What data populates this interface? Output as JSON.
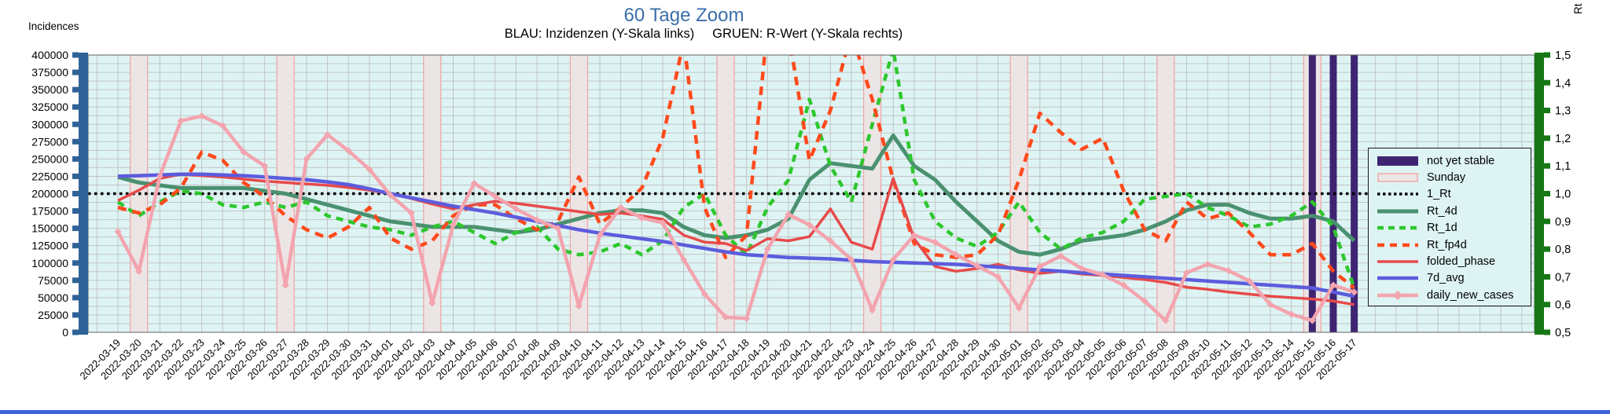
{
  "header": {
    "title": "60 Tage Zoom",
    "subtitle": "BLAU: Inzidenzen (Y-Skala links)     GRUEN: R-Wert (Y-Skala rechts)",
    "y_left_title": "Incidences",
    "y_right_title": "Rt"
  },
  "colors": {
    "plot_bg": "#def4f4",
    "grid": "#c3c3c3",
    "sunday_fill": "#ece5e5",
    "sunday_edge": "#f2a6a6",
    "not_yet_stable": "#3f2472",
    "left_axis_bar": "#2f6397",
    "right_axis_bar": "#157815",
    "reference_line": "#000000",
    "title_color": "#3a6ea8",
    "bottom_strip": "#3c64d8"
  },
  "chart_data": {
    "type": "line",
    "title": "60 Tage Zoom",
    "subtitle": "BLAU: Inzidenzen (Y-Skala links)    GRUEN: R-Wert (Y-Skala rechts)",
    "x_dates": [
      "2022-03-19",
      "2022-03-20",
      "2022-03-21",
      "2022-03-22",
      "2022-03-23",
      "2022-03-24",
      "2022-03-25",
      "2022-03-26",
      "2022-03-27",
      "2022-03-28",
      "2022-03-29",
      "2022-03-30",
      "2022-03-31",
      "2022-04-01",
      "2022-04-02",
      "2022-04-03",
      "2022-04-04",
      "2022-04-05",
      "2022-04-06",
      "2022-04-07",
      "2022-04-08",
      "2022-04-09",
      "2022-04-10",
      "2022-04-11",
      "2022-04-12",
      "2022-04-13",
      "2022-04-14",
      "2022-04-15",
      "2022-04-16",
      "2022-04-17",
      "2022-04-18",
      "2022-04-19",
      "2022-04-20",
      "2022-04-21",
      "2022-04-22",
      "2022-04-23",
      "2022-04-24",
      "2022-04-25",
      "2022-04-26",
      "2022-04-27",
      "2022-04-28",
      "2022-04-29",
      "2022-04-30",
      "2022-05-01",
      "2022-05-02",
      "2022-05-03",
      "2022-05-04",
      "2022-05-05",
      "2022-05-06",
      "2022-05-07",
      "2022-05-08",
      "2022-05-09",
      "2022-05-10",
      "2022-05-11",
      "2022-05-12",
      "2022-05-13",
      "2022-05-14",
      "2022-05-15",
      "2022-05-16",
      "2022-05-17"
    ],
    "y_left": {
      "label": "Incidences",
      "min": 0,
      "max": 400000,
      "tick_step": 25000,
      "grid_step": 12500,
      "tick_labels": [
        "0",
        "25000",
        "50000",
        "75000",
        "100000",
        "125000",
        "150000",
        "175000",
        "200000",
        "225000",
        "250000",
        "275000",
        "300000",
        "325000",
        "350000",
        "375000",
        "400000"
      ]
    },
    "y_right": {
      "label": "Rt",
      "min": 0.5,
      "max": 1.5,
      "tick_step": 0.1,
      "tick_labels": [
        "0,5",
        "0,6",
        "0,7",
        "0,8",
        "0,9",
        "1,0",
        "1,1",
        "1,2",
        "1,3",
        "1,4",
        "1,5"
      ]
    },
    "sunday_band_indices": [
      1,
      8,
      15,
      22,
      29,
      36,
      43,
      50,
      57
    ],
    "not_yet_stable_indices": [
      57,
      58,
      59
    ],
    "reference_line": {
      "label": "1_Rt",
      "axis": "right",
      "value": 1.0
    },
    "series": [
      {
        "key": "Rt_4d",
        "label": "Rt_4d",
        "axis": "right",
        "color": "#4a9170",
        "width": 5,
        "dash": null,
        "values": [
          1.06,
          1.04,
          1.03,
          1.02,
          1.02,
          1.02,
          1.02,
          1.01,
          1.0,
          0.98,
          0.96,
          0.94,
          0.92,
          0.9,
          0.89,
          0.88,
          0.88,
          0.88,
          0.87,
          0.86,
          0.87,
          0.89,
          0.91,
          0.93,
          0.94,
          0.94,
          0.93,
          0.88,
          0.85,
          0.84,
          0.85,
          0.87,
          0.91,
          1.05,
          1.11,
          1.1,
          1.09,
          1.21,
          1.1,
          1.05,
          0.97,
          0.9,
          0.83,
          0.79,
          0.78,
          0.8,
          0.83,
          0.84,
          0.85,
          0.87,
          0.9,
          0.94,
          0.96,
          0.96,
          0.93,
          0.91,
          0.91,
          0.92,
          0.9,
          0.83
        ]
      },
      {
        "key": "Rt_1d",
        "label": "Rt_1d",
        "axis": "right",
        "color": "#2dc72d",
        "width": 4.5,
        "dash": "9 7",
        "values": [
          0.97,
          0.92,
          0.97,
          1.01,
          1.0,
          0.96,
          0.95,
          0.97,
          0.95,
          0.97,
          0.92,
          0.9,
          0.88,
          0.87,
          0.85,
          0.88,
          0.9,
          0.86,
          0.82,
          0.86,
          0.88,
          0.8,
          0.78,
          0.79,
          0.82,
          0.78,
          0.83,
          0.95,
          1.0,
          0.85,
          0.78,
          0.95,
          1.05,
          1.34,
          1.1,
          0.97,
          1.25,
          1.52,
          1.05,
          0.9,
          0.84,
          0.81,
          0.86,
          0.97,
          0.86,
          0.8,
          0.84,
          0.86,
          0.9,
          0.98,
          0.99,
          1.0,
          0.95,
          0.92,
          0.88,
          0.89,
          0.92,
          0.97,
          0.88,
          0.66
        ]
      },
      {
        "key": "Rt_fp4d",
        "label": "Rt_fp4d",
        "axis": "right",
        "color": "#ff4a1c",
        "width": 4.5,
        "dash": "11 8",
        "values": [
          0.95,
          0.93,
          0.96,
          1.02,
          1.15,
          1.12,
          1.04,
          0.99,
          0.92,
          0.87,
          0.84,
          0.88,
          0.95,
          0.84,
          0.8,
          0.83,
          0.92,
          0.96,
          0.96,
          0.91,
          0.87,
          0.9,
          1.06,
          0.89,
          0.95,
          1.02,
          1.2,
          1.55,
          0.95,
          0.77,
          0.85,
          1.6,
          1.58,
          1.12,
          1.3,
          1.58,
          1.34,
          1.05,
          0.82,
          0.78,
          0.77,
          0.78,
          0.85,
          1.05,
          1.29,
          1.22,
          1.16,
          1.2,
          1.01,
          0.87,
          0.83,
          0.97,
          0.91,
          0.93,
          0.86,
          0.78,
          0.78,
          0.82,
          0.72,
          0.66
        ]
      },
      {
        "key": "folded_phase",
        "label": "folded_phase",
        "axis": "left",
        "color": "#e74a4a",
        "width": 3.5,
        "dash": null,
        "values": [
          190000,
          205000,
          222000,
          228000,
          226000,
          224000,
          221000,
          218000,
          216000,
          214000,
          212000,
          209000,
          205000,
          200000,
          193000,
          185000,
          178000,
          184000,
          189000,
          186000,
          182000,
          178000,
          174000,
          170000,
          172000,
          168000,
          163000,
          140000,
          130000,
          128000,
          118000,
          135000,
          132000,
          138000,
          178000,
          130000,
          120000,
          222000,
          135000,
          95000,
          88000,
          92000,
          98000,
          90000,
          85000,
          88000,
          84000,
          82000,
          79000,
          76000,
          72000,
          65000,
          62000,
          58000,
          55000,
          52000,
          50000,
          48000,
          45000,
          40000
        ]
      },
      {
        "key": "7d_avg",
        "label": "7d_avg",
        "axis": "left",
        "color": "#5c5cdd",
        "width": 4.5,
        "dash": null,
        "values": [
          225000,
          226000,
          227000,
          228000,
          228000,
          227000,
          226000,
          224000,
          222000,
          220000,
          217000,
          213000,
          207000,
          200000,
          194000,
          188000,
          182000,
          177000,
          172000,
          166000,
          160000,
          154000,
          148000,
          143000,
          139000,
          135000,
          131000,
          126000,
          121000,
          116000,
          112000,
          110000,
          108000,
          107000,
          106000,
          104000,
          102000,
          101000,
          100000,
          99000,
          98000,
          96000,
          94000,
          92000,
          90000,
          88000,
          86000,
          84000,
          82000,
          80000,
          78000,
          76000,
          74000,
          72000,
          70000,
          68000,
          66000,
          64000,
          58000,
          52000
        ]
      },
      {
        "key": "daily_new_cases",
        "label": "daily_new_cases",
        "axis": "left",
        "color": "#f3a4ae",
        "width": 4.5,
        "dash": null,
        "marker": "diamond",
        "values": [
          145000,
          88000,
          225000,
          305000,
          312000,
          298000,
          260000,
          240000,
          68000,
          250000,
          285000,
          262000,
          235000,
          198000,
          172000,
          42000,
          155000,
          215000,
          196000,
          178000,
          162000,
          150000,
          38000,
          140000,
          180000,
          165000,
          158000,
          105000,
          55000,
          22000,
          20000,
          120000,
          170000,
          155000,
          132000,
          105000,
          32000,
          105000,
          140000,
          130000,
          112000,
          96000,
          80000,
          35000,
          95000,
          110000,
          92000,
          83000,
          68000,
          45000,
          17000,
          86000,
          98000,
          89000,
          74000,
          40000,
          26000,
          17000,
          68000,
          58000
        ]
      }
    ],
    "legend": {
      "position": "right-inside",
      "entries": [
        {
          "label": "not yet stable",
          "swatch": "band",
          "color": "#3f2472"
        },
        {
          "label": "Sunday",
          "swatch": "band-outline",
          "color": "#f2a6a6",
          "fill": "#ece5e5"
        },
        {
          "label": "1_Rt",
          "swatch": "line",
          "color": "#000000",
          "width": 3.5,
          "dash": "3.5 3.5"
        },
        {
          "label": "Rt_4d",
          "swatch": "line",
          "color": "#4a9170",
          "width": 5,
          "dash": null
        },
        {
          "label": "Rt_1d",
          "swatch": "line",
          "color": "#2dc72d",
          "width": 4.5,
          "dash": "8 6"
        },
        {
          "label": "Rt_fp4d",
          "swatch": "line",
          "color": "#ff4a1c",
          "width": 4.5,
          "dash": "9 7"
        },
        {
          "label": "folded_phase",
          "swatch": "line",
          "color": "#e74a4a",
          "width": 3.5,
          "dash": null
        },
        {
          "label": "7d_avg",
          "swatch": "line",
          "color": "#5c5cdd",
          "width": 4.5,
          "dash": null
        },
        {
          "label": "daily_new_cases",
          "swatch": "line-diamond",
          "color": "#f3a4ae",
          "width": 4.5,
          "dash": null
        }
      ]
    }
  }
}
